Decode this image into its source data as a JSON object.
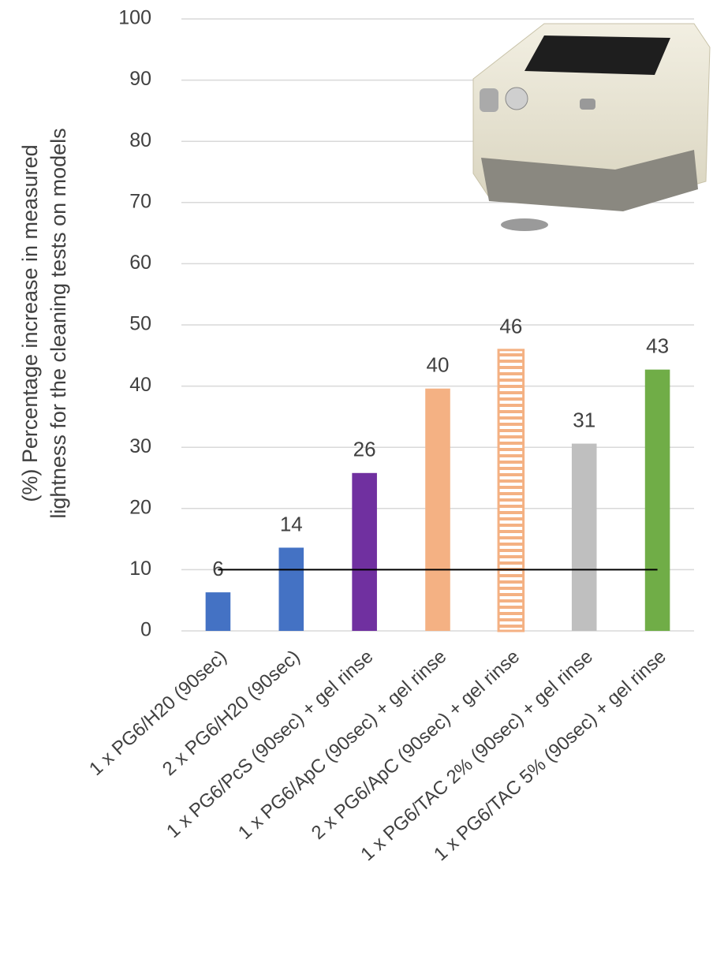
{
  "chart_data": {
    "type": "bar",
    "y_label": [
      "(%) Percentage increase in measured",
      "lightness for the cleaning tests on models"
    ],
    "categories": [
      "1 x PG6/H20 (90sec)",
      "2 x PG6/H20 (90sec)",
      "1 x PG6/PcS (90sec) + gel rinse",
      "1 x PG6/ApC (90sec) + gel rinse",
      "2 x PG6/ApC (90sec) + gel rinse",
      "1 x PG6/TAC 2% (90sec) + gel rinse",
      "1 x PG6/TAC 5% (90sec) + gel rinse"
    ],
    "values": [
      6.3,
      13.6,
      25.8,
      39.6,
      45.9,
      30.6,
      42.7
    ],
    "value_labels": [
      "6",
      "14",
      "26",
      "40",
      "46",
      "31",
      "43"
    ],
    "colors": [
      "#4472c4",
      "#4472c4",
      "#7030a0",
      "#f4b183",
      "#f4b183",
      "#bfbfbf",
      "#70ad47"
    ],
    "hatch": [
      false,
      false,
      false,
      false,
      true,
      false,
      false
    ],
    "reference_line": 10,
    "ylim": [
      0,
      100
    ],
    "yticks": [
      0,
      10,
      20,
      30,
      40,
      50,
      60,
      70,
      80,
      90,
      100
    ],
    "grid": true
  }
}
